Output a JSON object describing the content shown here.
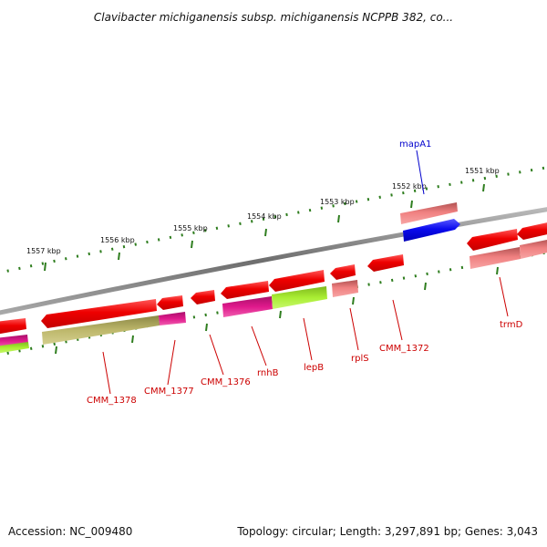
{
  "title": "Clavibacter michiganensis subsp. michiganensis NCPPB 382, co...",
  "footer": {
    "accession": "Accession: NC_009480",
    "stats": "Topology: circular; Length: 3,297,891 bp; Genes: 3,043"
  },
  "kbp_labels": [
    "1557 kbp",
    "1556 kbp",
    "1555 kbp",
    "1554 kbp",
    "1553 kbp",
    "1552 kbp",
    "1551 kbp"
  ],
  "gene_labels": [
    "mapA1",
    "CMM_1378",
    "CMM_1377",
    "CMM_1376",
    "rnhB",
    "lepB",
    "rplS",
    "CMM_1372",
    "trmD"
  ],
  "colors": {
    "backbone": "#7a7a7a",
    "tick": "#2e7d1e",
    "gene_red": "#ee0000",
    "gene_pink": "#f08080",
    "gene_blue": "#0a0aee",
    "cog_olive": "#bdb76b",
    "cog_magenta": "#e0198c",
    "cog_green": "#aaee33",
    "label_red": "#cc0000",
    "label_blue": "#0000cc"
  }
}
